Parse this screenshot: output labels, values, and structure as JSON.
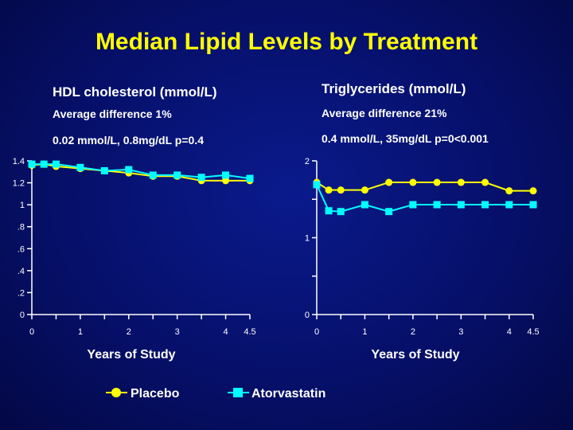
{
  "slide": {
    "title": "Median Lipid Levels by Treatment"
  },
  "legend": {
    "placebo": {
      "label": "Placebo",
      "color": "#ffff00",
      "marker": "circle"
    },
    "atorvastatin": {
      "label": "Atorvastatin",
      "color": "#00ffff",
      "marker": "square"
    }
  },
  "chart_data": [
    {
      "type": "line",
      "title": "HDL cholesterol (mmol/L)",
      "annotations": [
        "Average difference 1%",
        "0.02 mmol/L, 0.8mg/dL p=0.4"
      ],
      "xlabel": "Years of Study",
      "ylabel": "",
      "xlim": [
        0,
        4.5
      ],
      "ylim": [
        0,
        1.4
      ],
      "xticks": [
        "0",
        "1",
        "2",
        "3",
        "4",
        "4.5"
      ],
      "yticks": [
        "0",
        ".2",
        ".4",
        ".6",
        ".8",
        "1",
        "1.2",
        "1.4"
      ],
      "series": [
        {
          "name": "Placebo",
          "x": [
            0,
            0.25,
            0.5,
            1,
            1.5,
            2,
            2.5,
            3,
            3.5,
            4,
            4.5
          ],
          "values": [
            1.36,
            1.37,
            1.35,
            1.33,
            1.31,
            1.29,
            1.26,
            1.26,
            1.22,
            1.22,
            1.22
          ]
        },
        {
          "name": "Atorvastatin",
          "x": [
            0,
            0.25,
            0.5,
            1,
            1.5,
            2,
            2.5,
            3,
            3.5,
            4,
            4.5
          ],
          "values": [
            1.37,
            1.37,
            1.37,
            1.34,
            1.31,
            1.32,
            1.27,
            1.27,
            1.25,
            1.27,
            1.24
          ]
        }
      ]
    },
    {
      "type": "line",
      "title": "Triglycerides (mmol/L)",
      "annotations": [
        "Average difference 21%",
        "0.4 mmol/L, 35mg/dL p=0<0.001"
      ],
      "xlabel": "Years of Study",
      "ylabel": "",
      "xlim": [
        0,
        4.5
      ],
      "ylim": [
        0,
        2
      ],
      "xticks": [
        "0",
        "1",
        "2",
        "3",
        "4",
        "4.5"
      ],
      "yticks": [
        "0",
        "1",
        "2"
      ],
      "series": [
        {
          "name": "Placebo",
          "x": [
            0,
            0.25,
            0.5,
            1,
            1.5,
            2,
            2.5,
            3,
            3.5,
            4,
            4.5
          ],
          "values": [
            1.72,
            1.62,
            1.62,
            1.62,
            1.72,
            1.72,
            1.72,
            1.72,
            1.72,
            1.61,
            1.61
          ]
        },
        {
          "name": "Atorvastatin",
          "x": [
            0,
            0.25,
            0.5,
            1,
            1.5,
            2,
            2.5,
            3,
            3.5,
            4,
            4.5
          ],
          "values": [
            1.69,
            1.35,
            1.34,
            1.43,
            1.34,
            1.43,
            1.43,
            1.43,
            1.43,
            1.43,
            1.43
          ]
        }
      ]
    }
  ]
}
